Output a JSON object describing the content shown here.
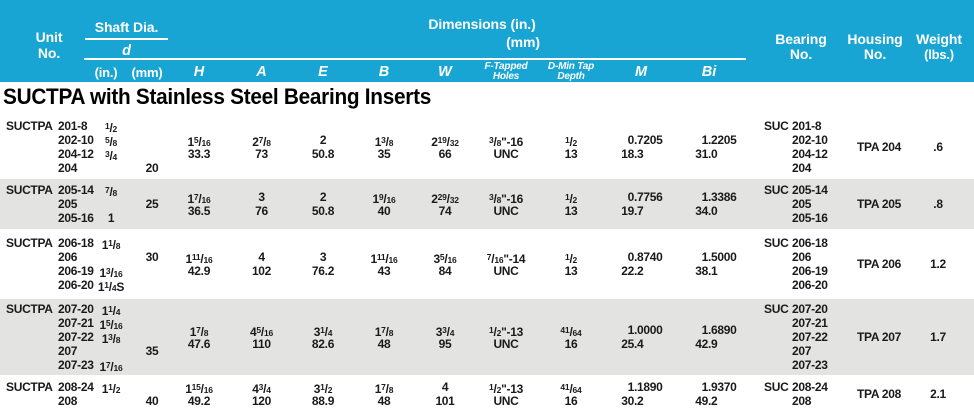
{
  "title": "SUCTPA with Stainless Steel Bearing Inserts",
  "colors": {
    "header_bg": "#18a5d3",
    "band_bg": "#e3e3e1",
    "header_text": "#ffffff",
    "body_text": "#1a1a1a"
  },
  "header": {
    "unit_no": [
      "Unit",
      "No."
    ],
    "shaft_dia": "Shaft Dia.",
    "d": "d",
    "in": "(in.)",
    "mm": "(mm)",
    "dimensions_line1": "Dimensions (in.)",
    "dimensions_line2": "(mm)",
    "dim_columns": [
      "H",
      "A",
      "E",
      "B",
      "W",
      [
        "F-Tapped",
        "Holes"
      ],
      [
        "D-Min Tap",
        "Depth"
      ],
      "M",
      "Bi"
    ],
    "bearing_no": [
      "Bearing",
      "No."
    ],
    "housing_no": [
      "Housing",
      "No."
    ],
    "weight": [
      "Weight",
      "(lbs.)"
    ]
  },
  "groups": [
    {
      "unit_prefix": "SUCTPA",
      "bearing_prefix": "SUC",
      "rows": [
        {
          "unit": "201-8",
          "in": "{1/2}",
          "bearing": "201-8"
        },
        {
          "unit": "202-10",
          "in": "{5/8}",
          "bearing": "202-10"
        },
        {
          "unit": "204-12",
          "in": "{3/4}",
          "bearing": "204-12"
        },
        {
          "unit": "204",
          "in": "",
          "bearing": "204"
        }
      ],
      "mm": "20",
      "dims": {
        "H": [
          "1{5/16}",
          "33.3"
        ],
        "A": [
          "2{7/8}",
          "73"
        ],
        "E": [
          "2",
          "50.8"
        ],
        "B": [
          "1{3/8}",
          "35"
        ],
        "W": [
          "2{19/32}",
          "66"
        ],
        "F": [
          "{3/8}\"-16",
          "UNC"
        ],
        "D": [
          "{1/2}",
          "13"
        ],
        "M": [
          "0.7205",
          "18.3"
        ],
        "Bi": [
          "1.2205",
          "31.0"
        ]
      },
      "housing": "TPA 204",
      "weight": ".6",
      "shaded": false
    },
    {
      "unit_prefix": "SUCTPA",
      "bearing_prefix": "SUC",
      "rows": [
        {
          "unit": "205-14",
          "in": "{7/8}",
          "bearing": "205-14"
        },
        {
          "unit": "205",
          "in": "",
          "bearing": "205"
        },
        {
          "unit": "205-16",
          "in": "1",
          "bearing": "205-16"
        }
      ],
      "mm": "25",
      "dims": {
        "H": [
          "1{7/16}",
          "36.5"
        ],
        "A": [
          "3",
          "76"
        ],
        "E": [
          "2",
          "50.8"
        ],
        "B": [
          "1{9/16}",
          "40"
        ],
        "W": [
          "2{29/32}",
          "74"
        ],
        "F": [
          "{3/8}\"-16",
          "UNC"
        ],
        "D": [
          "{1/2}",
          "13"
        ],
        "M": [
          "0.7756",
          "19.7"
        ],
        "Bi": [
          "1.3386",
          "34.0"
        ]
      },
      "housing": "TPA 205",
      "weight": ".8",
      "shaded": true
    },
    {
      "unit_prefix": "SUCTPA",
      "bearing_prefix": "SUC",
      "rows": [
        {
          "unit": "206-18",
          "in": "1{1/8}",
          "bearing": "206-18"
        },
        {
          "unit": "206",
          "in": "",
          "bearing": "206"
        },
        {
          "unit": "206-19",
          "in": "1{3/16}",
          "bearing": "206-19"
        },
        {
          "unit": "206-20",
          "in": "1{1/4}S",
          "bearing": "206-20"
        }
      ],
      "mm": "30",
      "dims": {
        "H": [
          "1{11/16}",
          "42.9"
        ],
        "A": [
          "4",
          "102"
        ],
        "E": [
          "3",
          "76.2"
        ],
        "B": [
          "1{11/16}",
          "43"
        ],
        "W": [
          "3{5/16}",
          "84"
        ],
        "F": [
          "{7/16}\"-14",
          "UNC"
        ],
        "D": [
          "{1/2}",
          "13"
        ],
        "M": [
          "0.8740",
          "22.2"
        ],
        "Bi": [
          "1.5000",
          "38.1"
        ]
      },
      "housing": "TPA 206",
      "weight": "1.2",
      "shaded": false
    },
    {
      "unit_prefix": "SUCTPA",
      "bearing_prefix": "SUC",
      "rows": [
        {
          "unit": "207-20",
          "in": "1{1/4}",
          "bearing": "207-20"
        },
        {
          "unit": "207-21",
          "in": "1{5/16}",
          "bearing": "207-21"
        },
        {
          "unit": "207-22",
          "in": "1{3/8}",
          "bearing": "207-22"
        },
        {
          "unit": "207",
          "in": "",
          "bearing": "207"
        },
        {
          "unit": "207-23",
          "in": "1{7/16}",
          "bearing": "207-23"
        }
      ],
      "mm": "35",
      "dims": {
        "H": [
          "1{7/8}",
          "47.6"
        ],
        "A": [
          "4{5/16}",
          "110"
        ],
        "E": [
          "3{1/4}",
          "82.6"
        ],
        "B": [
          "1{7/8}",
          "48"
        ],
        "W": [
          "3{3/4}",
          "95"
        ],
        "F": [
          "{1/2}\"-13",
          "UNC"
        ],
        "D": [
          "{41/64}",
          "16"
        ],
        "M": [
          "1.0000",
          "25.4"
        ],
        "Bi": [
          "1.6890",
          "42.9"
        ]
      },
      "housing": "TPA 207",
      "weight": "1.7",
      "shaded": true
    },
    {
      "unit_prefix": "SUCTPA",
      "bearing_prefix": "SUC",
      "rows": [
        {
          "unit": "208-24",
          "in": "1{1/2}",
          "bearing": "208-24"
        },
        {
          "unit": "208",
          "in": "",
          "bearing": "208"
        }
      ],
      "mm": "40",
      "dims": {
        "H": [
          "1{15/16}",
          "49.2"
        ],
        "A": [
          "4{3/4}",
          "120"
        ],
        "E": [
          "3{1/2}",
          "88.9"
        ],
        "B": [
          "1{7/8}",
          "48"
        ],
        "W": [
          "4",
          "101"
        ],
        "F": [
          "{1/2}\"-13",
          "UNC"
        ],
        "D": [
          "{41/64}",
          "16"
        ],
        "M": [
          "1.1890",
          "30.2"
        ],
        "Bi": [
          "1.9370",
          "49.2"
        ]
      },
      "housing": "TPA 208",
      "weight": "2.1",
      "shaded": false
    }
  ]
}
